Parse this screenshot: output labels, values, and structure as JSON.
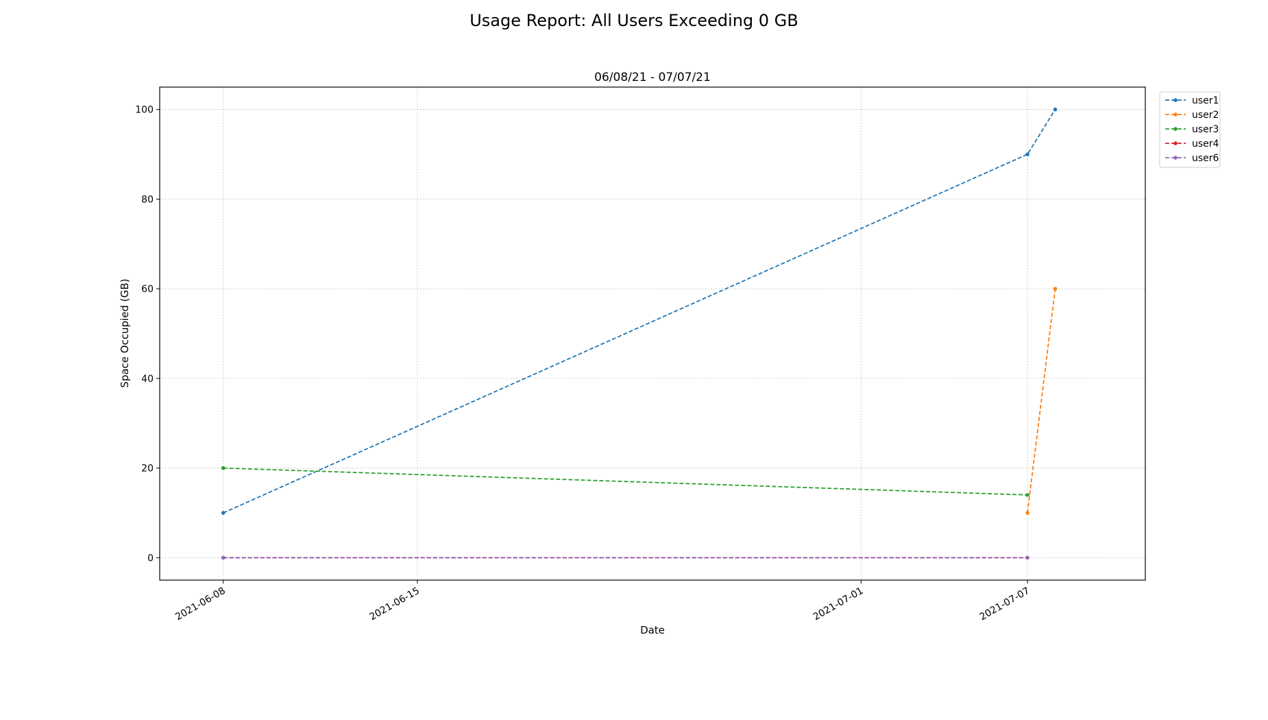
{
  "chart_data": {
    "type": "line",
    "title": "Usage Report: All Users Exceeding 0 GB",
    "subtitle": "06/08/21 - 07/07/21",
    "xlabel": "Date",
    "ylabel": "Space Occupied (GB)",
    "x_axis": "date",
    "xlim": [
      "2021-06-05 17:00",
      "2021-07-11 06:00"
    ],
    "ylim": [
      -5,
      105
    ],
    "xticks": [
      "2021-06-08",
      "2021-06-15",
      "2021-07-01",
      "2021-07-07"
    ],
    "yticks": [
      0,
      20,
      40,
      60,
      80,
      100
    ],
    "grid": true,
    "legend": "upper-right outside",
    "line_style": "dashed",
    "marker": "dot",
    "series": [
      {
        "name": "user1",
        "color": "#1f77b4",
        "points": [
          [
            "2021-06-08",
            10
          ],
          [
            "2021-07-07",
            90
          ],
          [
            "2021-07-08",
            100
          ]
        ]
      },
      {
        "name": "user2",
        "color": "#ff7f0e",
        "points": [
          [
            "2021-07-07",
            10
          ],
          [
            "2021-07-08",
            60
          ]
        ]
      },
      {
        "name": "user3",
        "color": "#2ca02c",
        "points": [
          [
            "2021-06-08",
            20
          ],
          [
            "2021-07-07",
            14
          ]
        ]
      },
      {
        "name": "user4",
        "color": "#d62728",
        "points": [
          [
            "2021-06-08",
            0
          ],
          [
            "2021-07-07",
            0
          ]
        ]
      },
      {
        "name": "user6",
        "color": "#9467bd",
        "points": [
          [
            "2021-06-08",
            0
          ],
          [
            "2021-07-07",
            0
          ]
        ]
      }
    ]
  }
}
